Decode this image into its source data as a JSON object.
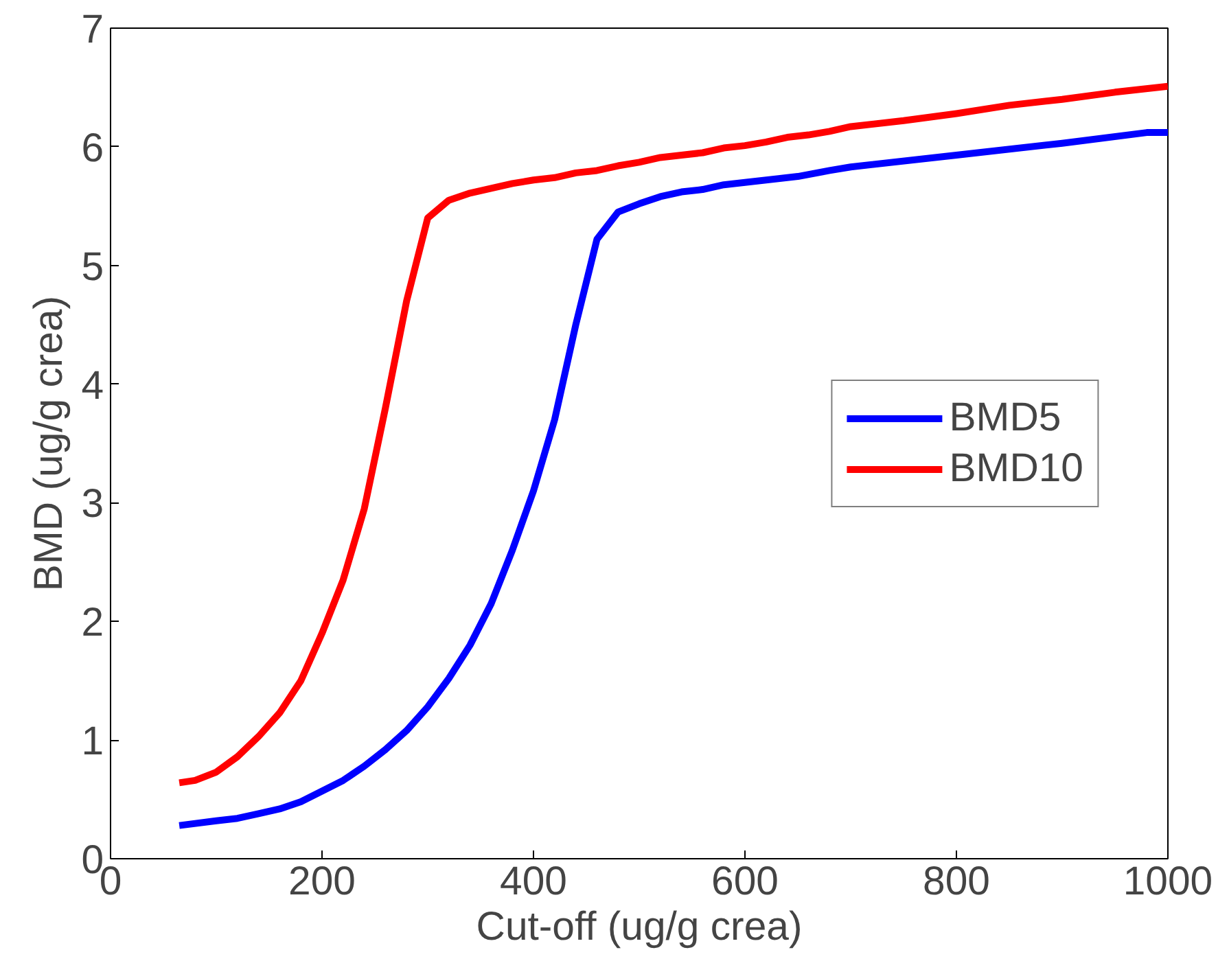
{
  "chart_data": {
    "type": "line",
    "xlabel": "Cut-off (ug/g crea)",
    "ylabel": "BMD (ug/g crea)",
    "xlim": [
      0,
      1000
    ],
    "xticks": [
      0,
      200,
      400,
      600,
      800,
      1000
    ],
    "ylim": [
      0,
      7
    ],
    "yticks": [
      0,
      1,
      2,
      3,
      4,
      5,
      6,
      7
    ],
    "grid": false,
    "legend": "right",
    "marker": "none",
    "line_style": "solid",
    "series": [
      {
        "name": "BMD5",
        "color": "#0000ff",
        "x": [
          65,
          100,
          120,
          140,
          160,
          180,
          200,
          220,
          240,
          260,
          280,
          300,
          320,
          340,
          360,
          380,
          400,
          420,
          440,
          460,
          480,
          500,
          520,
          540,
          560,
          580,
          600,
          650,
          680,
          700,
          800,
          900,
          980,
          1000
        ],
        "values": [
          0.28,
          0.32,
          0.34,
          0.38,
          0.42,
          0.48,
          0.57,
          0.66,
          0.78,
          0.92,
          1.08,
          1.28,
          1.52,
          1.8,
          2.15,
          2.6,
          3.1,
          3.7,
          4.5,
          5.22,
          5.45,
          5.52,
          5.58,
          5.62,
          5.64,
          5.68,
          5.7,
          5.75,
          5.8,
          5.83,
          5.93,
          6.03,
          6.12,
          6.12
        ]
      },
      {
        "name": "BMD10",
        "color": "#ff0000",
        "x": [
          65,
          80,
          100,
          120,
          140,
          160,
          180,
          200,
          220,
          240,
          260,
          280,
          300,
          320,
          340,
          360,
          380,
          400,
          420,
          440,
          460,
          480,
          500,
          520,
          540,
          560,
          580,
          600,
          620,
          640,
          660,
          680,
          700,
          750,
          800,
          850,
          900,
          950,
          1000
        ],
        "values": [
          0.64,
          0.66,
          0.73,
          0.86,
          1.03,
          1.23,
          1.5,
          1.9,
          2.35,
          2.95,
          3.8,
          4.7,
          5.4,
          5.55,
          5.61,
          5.65,
          5.69,
          5.72,
          5.74,
          5.78,
          5.8,
          5.84,
          5.87,
          5.91,
          5.93,
          5.95,
          5.99,
          6.01,
          6.04,
          6.08,
          6.1,
          6.13,
          6.17,
          6.22,
          6.28,
          6.35,
          6.4,
          6.46,
          6.51
        ]
      }
    ]
  }
}
